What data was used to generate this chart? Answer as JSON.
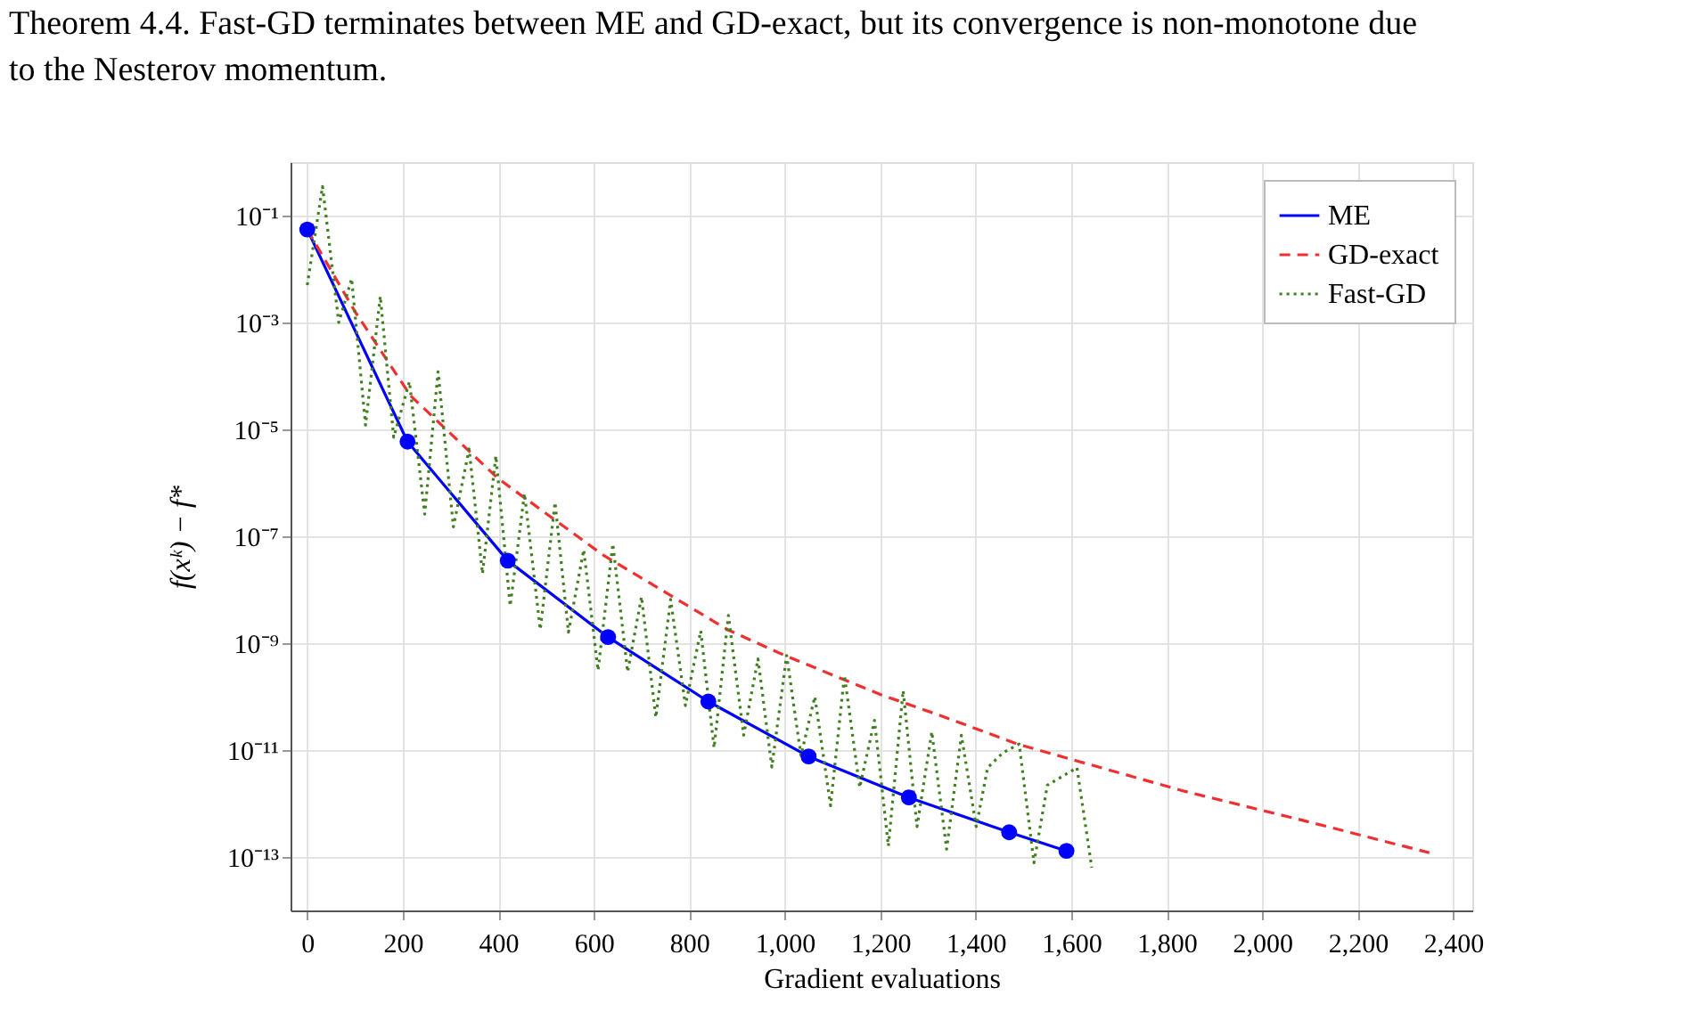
{
  "chart_data": {
    "type": "line",
    "title": "Theorem 4.4. Fast-GD terminates between ME and GD-exact, but its convergence is non-monotone due to the Nesterov momentum.",
    "xlabel": "Gradient evaluations",
    "ylabel": "f(xᵏ) − f*",
    "log": "y",
    "grid": true,
    "legend": "top right",
    "xlim": [
      -35,
      2440
    ],
    "ylim": [
      1e-14,
      1
    ],
    "xticks": [
      0,
      200,
      400,
      600,
      800,
      {
        "value": 1000,
        "label": "1,000"
      },
      {
        "value": 1200,
        "label": "1,200"
      },
      {
        "value": 1400,
        "label": "1,400"
      },
      {
        "value": 1600,
        "label": "1,600"
      },
      {
        "value": 1800,
        "label": "1,800"
      },
      {
        "value": 2000,
        "label": "2,000"
      },
      {
        "value": 2200,
        "label": "2,200"
      },
      {
        "value": 2400,
        "label": "2,400"
      }
    ],
    "yticks": [
      {
        "value": 0.1,
        "label": "10⁻¹"
      },
      {
        "value": 0.001,
        "label": "10⁻³"
      },
      {
        "value": 1e-05,
        "label": "10⁻⁵"
      },
      {
        "value": 1e-07,
        "label": "10⁻⁷"
      },
      {
        "value": 1e-09,
        "label": "10⁻⁹"
      },
      {
        "value": 1e-11,
        "label": "10⁻¹¹"
      },
      {
        "value": 1e-13,
        "label": "10⁻¹³"
      }
    ],
    "series": [
      {
        "name": "ME",
        "color": "#0000ff",
        "marker": "circle",
        "line_style": "solid",
        "x": [
          0,
          210,
          420,
          630,
          840,
          1050,
          1260,
          1470,
          1590
        ],
        "values": [
          0.055,
          5.9e-06,
          3.5e-08,
          1.3e-09,
          8.1e-11,
          7.6e-12,
          1.3e-12,
          2.9e-13,
          1.3e-13
        ]
      },
      {
        "name": "GD-exact",
        "color": "#f03030",
        "marker": "none",
        "line_style": "dashed",
        "x": [
          0,
          100,
          216,
          400,
          619,
          880,
          1000,
          1200,
          1327,
          1487,
          1614,
          1837,
          2083,
          2350
        ],
        "values": [
          0.055,
          0.0016,
          4.3e-05,
          1.2e-06,
          4.5e-08,
          1.8e-09,
          5.9e-10,
          1.1e-10,
          4.4e-11,
          1.3e-11,
          6.2e-12,
          1.7e-12,
          4.9e-13,
          1.2e-13
        ]
      },
      {
        "name": "Fast-GD",
        "color": "#3f7f1f",
        "marker": "none",
        "line_style": "dotted",
        "x": [
          0,
          32,
          66,
          93,
          122,
          153,
          181,
          214,
          246,
          274,
          306,
          339,
          367,
          395,
          425,
          455,
          488,
          519,
          547,
          579,
          609,
          640,
          671,
          700,
          730,
          761,
          792,
          824,
          852,
          882,
          914,
          944,
          973,
          1004,
          1034,
          1063,
          1096,
          1125,
          1157,
          1188,
          1217,
          1248,
          1277,
          1308,
          1339,
          1370,
          1401,
          1425,
          1457,
          1491,
          1522,
          1550,
          1612,
          1643
        ],
        "values": [
          0.005,
          0.35,
          0.001,
          0.0066,
          1.2e-05,
          0.0031,
          7.1e-06,
          7.8e-05,
          2.6e-07,
          0.00012,
          1.5e-07,
          4.3e-06,
          2e-08,
          3.2e-06,
          5e-09,
          6.3e-07,
          1.8e-09,
          4.3e-07,
          1.6e-09,
          5.6e-08,
          3.1e-10,
          7.2e-08,
          2.9e-10,
          7.4e-09,
          4.1e-11,
          6.6e-09,
          6.8e-11,
          1.7e-09,
          1.1e-11,
          3.3e-09,
          1.9e-11,
          5.1e-10,
          4.8e-12,
          5.9e-10,
          7.9e-12,
          1e-10,
          9.1e-13,
          2.5e-10,
          2e-12,
          3.6e-11,
          1.6e-13,
          1.3e-10,
          3.7e-13,
          2.2e-11,
          1.4e-13,
          1.9e-11,
          3.7e-13,
          4.7e-12,
          8.9e-12,
          1.3e-11,
          7.8e-14,
          2.2e-12,
          4.7e-12,
          6.3e-14
        ]
      }
    ]
  }
}
